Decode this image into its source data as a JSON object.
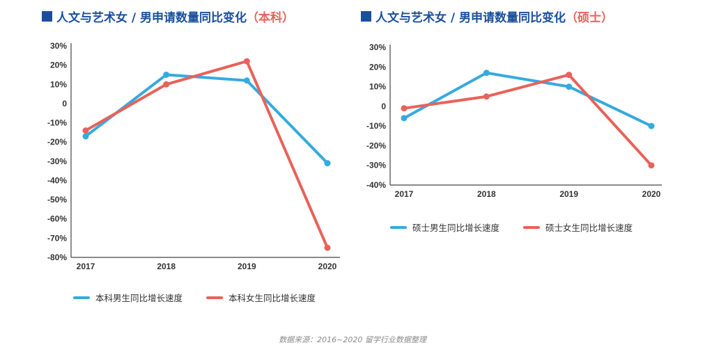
{
  "colors": {
    "male": "#35aadf",
    "female": "#e8625a",
    "title": "#1a4f9c",
    "axis": "#444444"
  },
  "panels": [
    {
      "title_main": "人文与艺术女 / 男申请数量同比变化",
      "title_paren_open": "（",
      "title_level": "本科",
      "title_paren_close": "）",
      "legend": [
        "本科男生同比增长速度",
        "本科女生同比增长速度"
      ]
    },
    {
      "title_main": "人文与艺术女 / 男申请数量同比变化",
      "title_paren_open": "（",
      "title_level": "硕士",
      "title_paren_close": "）",
      "legend": [
        "硕士男生同比增长速度",
        "硕士女生同比增长速度"
      ]
    }
  ],
  "source": "数据来源：2016~2020 留学行业数据整理",
  "chart_data": [
    {
      "type": "line",
      "x": [
        "2017",
        "2018",
        "2019",
        "2020"
      ],
      "ylim": [
        -80,
        30
      ],
      "yticks": [
        30,
        20,
        10,
        0,
        -10,
        -20,
        -30,
        -40,
        -50,
        -60,
        -70,
        -80
      ],
      "ytick_labels": [
        "30%",
        "20%",
        "10%",
        "0",
        "-10%",
        "-20%",
        "-30%",
        "-40%",
        "-50%",
        "-60%",
        "-70%",
        "-80%"
      ],
      "grid": false,
      "legend_position": "bottom",
      "series": [
        {
          "name": "本科男生同比增长速度",
          "values": [
            -17,
            15,
            12,
            -31
          ]
        },
        {
          "name": "本科女生同比增长速度",
          "values": [
            -14,
            10,
            22,
            -75
          ]
        }
      ]
    },
    {
      "type": "line",
      "x": [
        "2017",
        "2018",
        "2019",
        "2020"
      ],
      "ylim": [
        -40,
        30
      ],
      "yticks": [
        30,
        20,
        10,
        0,
        -10,
        -20,
        -30,
        -40
      ],
      "ytick_labels": [
        "30%",
        "20%",
        "10%",
        "0",
        "-10%",
        "-20%",
        "-30%",
        "-40%"
      ],
      "grid": false,
      "legend_position": "bottom",
      "series": [
        {
          "name": "硕士男生同比增长速度",
          "values": [
            -6,
            17,
            10,
            -10
          ]
        },
        {
          "name": "硕士女生同比增长速度",
          "values": [
            -1,
            5,
            16,
            -30
          ]
        }
      ]
    }
  ]
}
